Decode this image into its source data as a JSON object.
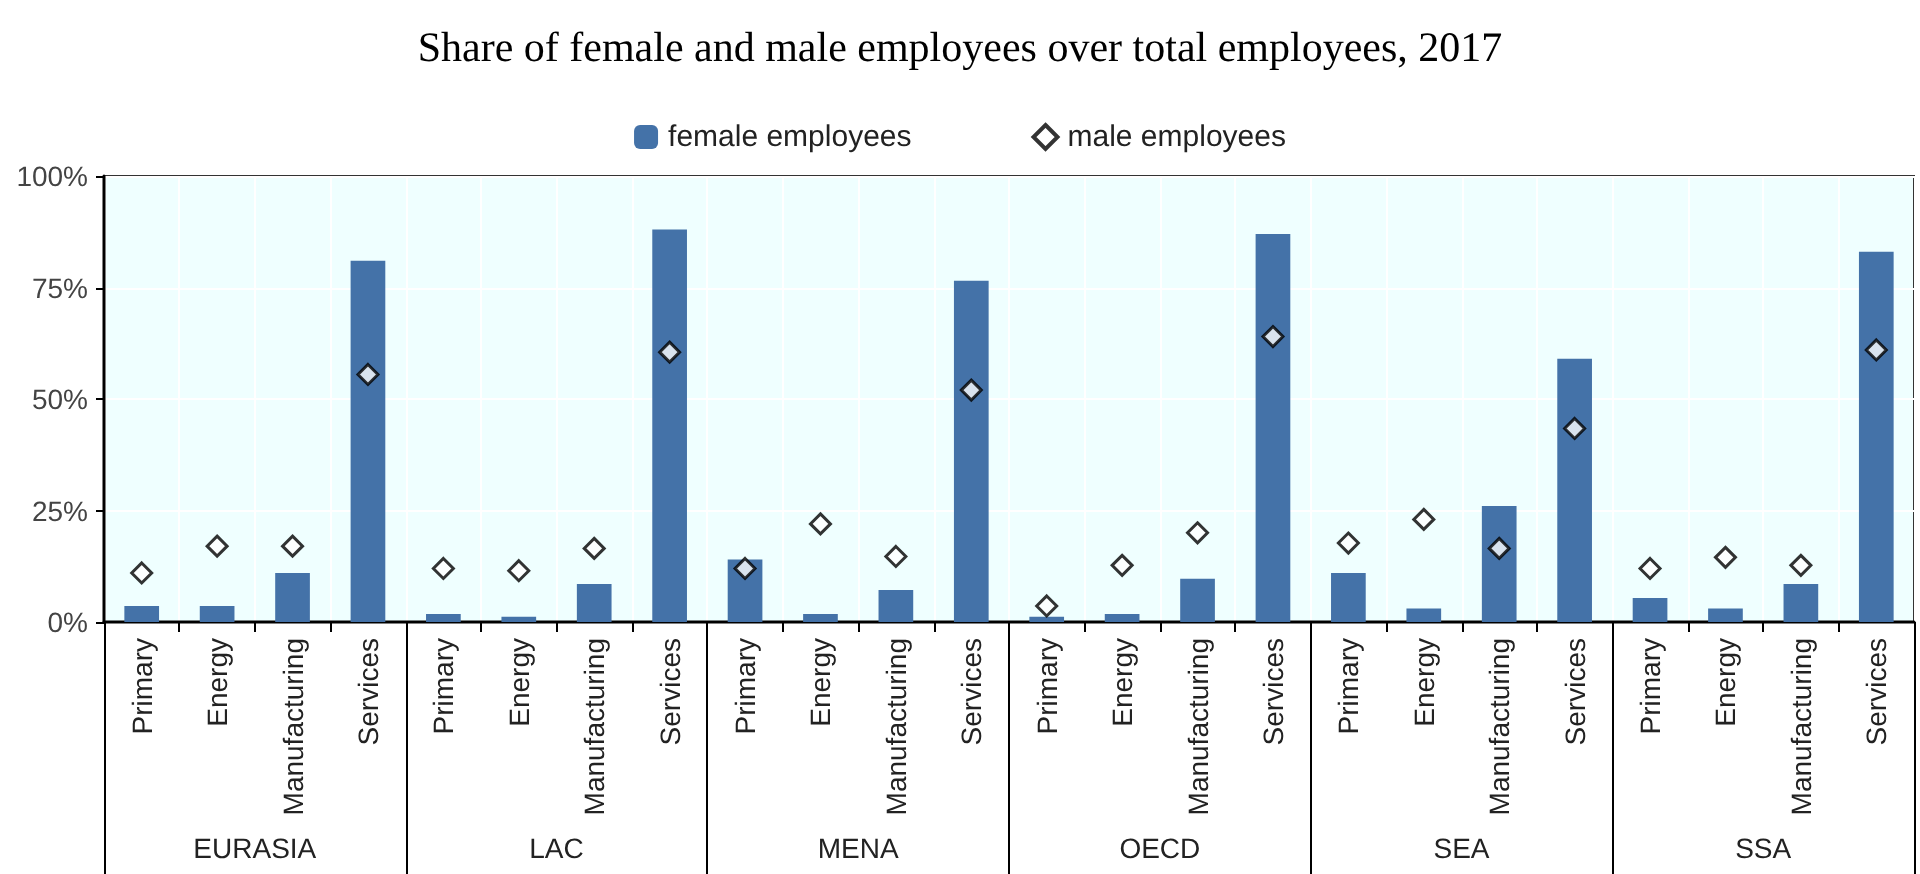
{
  "chart_data": {
    "type": "bar",
    "title": "Share of female and male employees over total employees, 2017",
    "categories": [
      "Primary",
      "Energy",
      "Manufacturing",
      "Services",
      "Primary",
      "Energy",
      "Manufacturing",
      "Services",
      "Primary",
      "Energy",
      "Manufacturing",
      "Services",
      "Primary",
      "Energy",
      "Manufacturing",
      "Services",
      "Primary",
      "Energy",
      "Manufacturing",
      "Services",
      "Primary",
      "Energy",
      "Manufacturing",
      "Services"
    ],
    "annotations": [
      "EURASIA",
      "LAC",
      "MENA",
      "OECD",
      "SEA",
      "SSA"
    ],
    "series": [
      {
        "name": "female employees",
        "color": "#4472a8",
        "values": [
          3.6,
          3.6,
          11,
          81,
          1.8,
          1.2,
          8.5,
          88,
          14,
          1.8,
          7.2,
          76.5,
          1.2,
          1.8,
          9.7,
          87,
          11,
          3,
          26,
          59,
          5.4,
          3,
          8.5,
          83
        ]
      },
      {
        "name": "male employees",
        "type": "scatter",
        "color": "#ffffff",
        "marker": "diamond",
        "values": [
          11,
          17,
          17,
          55.5,
          12,
          11.5,
          16.5,
          60.5,
          12,
          22,
          14.7,
          52,
          3.6,
          12.7,
          20,
          64,
          17.7,
          23,
          16.5,
          43.4,
          12,
          14.5,
          12.7,
          61
        ]
      }
    ],
    "ylim": [
      0,
      100
    ],
    "yticks": [
      {
        "value": 0,
        "label": "0%"
      },
      {
        "value": 25,
        "label": "25%"
      },
      {
        "value": 50,
        "label": "50%"
      },
      {
        "value": 75,
        "label": "75%"
      },
      {
        "value": 100,
        "label": "100%"
      }
    ],
    "grid": true,
    "legend": "top"
  }
}
